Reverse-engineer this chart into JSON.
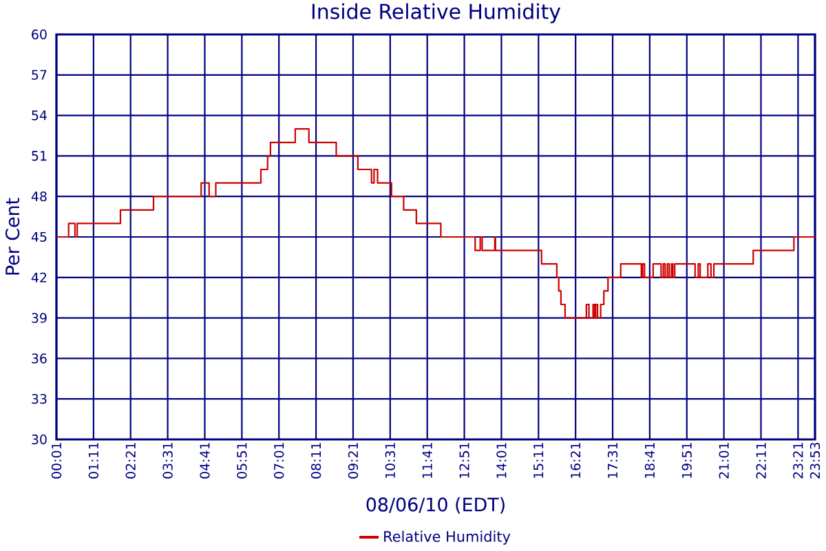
{
  "chart_data": {
    "type": "step",
    "title": "Inside Relative Humidity",
    "xlabel": "08/06/10 (EDT)",
    "ylabel": "Per Cent",
    "xlim": [
      0.0167,
      23.8833
    ],
    "ylim": [
      30,
      60
    ],
    "xticks": [
      {
        "value": 0.0167,
        "label": "00:01"
      },
      {
        "value": 1.1833,
        "label": "01:11"
      },
      {
        "value": 2.35,
        "label": "02:21"
      },
      {
        "value": 3.5167,
        "label": "03:31"
      },
      {
        "value": 4.6833,
        "label": "04:41"
      },
      {
        "value": 5.85,
        "label": "05:51"
      },
      {
        "value": 7.0167,
        "label": "07:01"
      },
      {
        "value": 8.1833,
        "label": "08:11"
      },
      {
        "value": 9.35,
        "label": "09:21"
      },
      {
        "value": 10.5167,
        "label": "10:31"
      },
      {
        "value": 11.6833,
        "label": "11:41"
      },
      {
        "value": 12.85,
        "label": "12:51"
      },
      {
        "value": 14.0167,
        "label": "14:01"
      },
      {
        "value": 15.1833,
        "label": "15:11"
      },
      {
        "value": 16.35,
        "label": "16:21"
      },
      {
        "value": 17.5167,
        "label": "17:31"
      },
      {
        "value": 18.6833,
        "label": "18:41"
      },
      {
        "value": 19.85,
        "label": "19:51"
      },
      {
        "value": 21.0167,
        "label": "21:01"
      },
      {
        "value": 22.1833,
        "label": "22:11"
      },
      {
        "value": 23.35,
        "label": "23:21"
      },
      {
        "value": 23.8833,
        "label": "23:53"
      }
    ],
    "yticks": [
      30,
      33,
      36,
      39,
      42,
      45,
      48,
      51,
      54,
      57,
      60
    ],
    "grid": true,
    "legend": "bottom",
    "series": [
      {
        "name": "Relative Humidity",
        "color": "#cc0000",
        "x": [
          0.0167,
          0.4,
          0.6,
          0.67,
          2.03,
          3.07,
          4.57,
          4.82,
          5.03,
          6.45,
          6.66,
          6.75,
          7.53,
          7.96,
          8.82,
          9.5,
          9.93,
          10.01,
          10.12,
          10.56,
          10.94,
          11.34,
          12.11,
          13.19,
          13.35,
          13.41,
          13.81,
          13.83,
          15.28,
          15.76,
          15.82,
          15.89,
          16.02,
          16.69,
          16.77,
          16.9,
          16.95,
          16.98,
          17.04,
          17.14,
          17.24,
          17.37,
          17.77,
          18.42,
          18.46,
          18.52,
          18.79,
          19.04,
          19.11,
          19.17,
          19.24,
          19.3,
          19.37,
          19.41,
          19.47,
          20.11,
          20.21,
          20.27,
          20.51,
          20.61,
          20.7,
          21.94,
          23.22,
          23.8833
        ],
        "values": [
          45,
          46,
          45,
          46,
          47,
          48,
          49,
          48,
          49,
          50,
          51,
          52,
          53,
          52,
          51,
          50,
          49,
          50,
          49,
          48,
          47,
          46,
          45,
          44,
          45,
          44,
          45,
          44,
          43,
          42,
          41,
          40,
          39,
          40,
          39,
          40,
          39,
          40,
          39,
          40,
          41,
          42,
          43,
          42,
          43,
          42,
          43,
          42,
          43,
          42,
          43,
          42,
          43,
          42,
          43,
          42,
          43,
          42,
          43,
          42,
          43,
          44,
          45,
          45
        ]
      }
    ]
  }
}
